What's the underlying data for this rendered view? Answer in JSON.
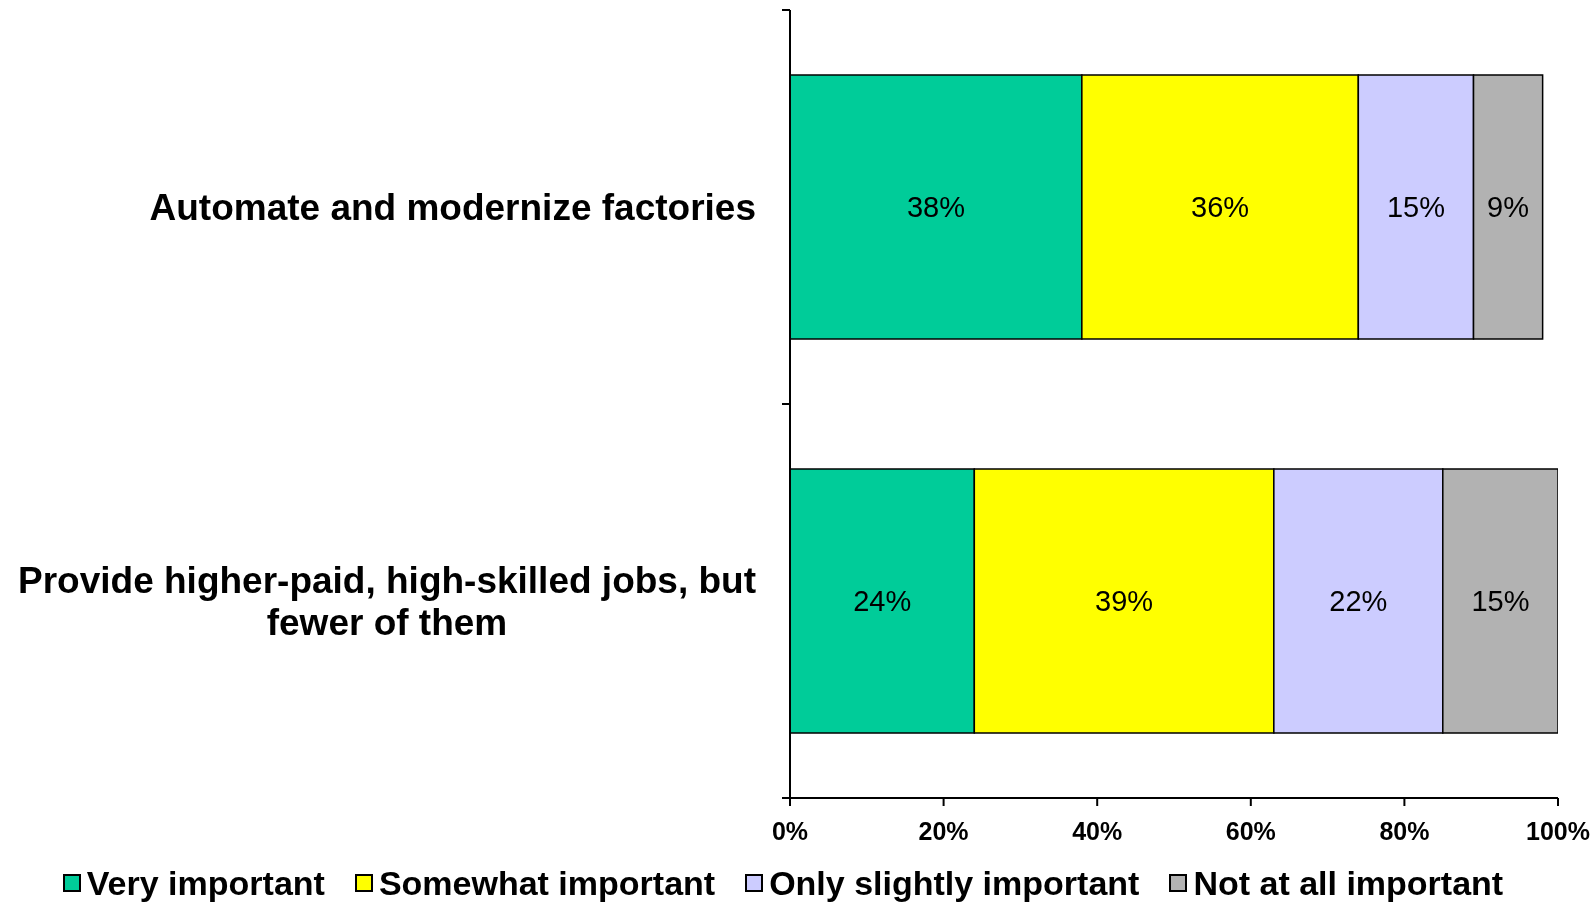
{
  "chart_data": {
    "type": "bar",
    "orientation": "horizontal",
    "stacked": true,
    "categories": [
      "Automate and modernize factories",
      "Provide higher-paid, high-skilled jobs, but fewer of them"
    ],
    "series": [
      {
        "name": "Very important",
        "color": "#00cc99",
        "values": [
          38,
          24
        ],
        "value_labels": [
          "38%",
          "24%"
        ]
      },
      {
        "name": "Somewhat important",
        "color": "#ffff00",
        "values": [
          36,
          39
        ],
        "value_labels": [
          "36%",
          "39%"
        ]
      },
      {
        "name": "Only slightly important",
        "color": "#ccccff",
        "values": [
          15,
          22
        ],
        "value_labels": [
          "15%",
          "22%"
        ]
      },
      {
        "name": "Not at all important",
        "color": "#b2b2b2",
        "values": [
          9,
          15
        ],
        "value_labels": [
          "9%",
          "15%"
        ]
      }
    ],
    "xlim": [
      0,
      100
    ],
    "xticks": [
      {
        "value": 0,
        "label": "0%"
      },
      {
        "value": 20,
        "label": "20%"
      },
      {
        "value": 40,
        "label": "40%"
      },
      {
        "value": 60,
        "label": "60%"
      },
      {
        "value": 80,
        "label": "80%"
      },
      {
        "value": 100,
        "label": "100%"
      }
    ],
    "legend": "bottom"
  }
}
